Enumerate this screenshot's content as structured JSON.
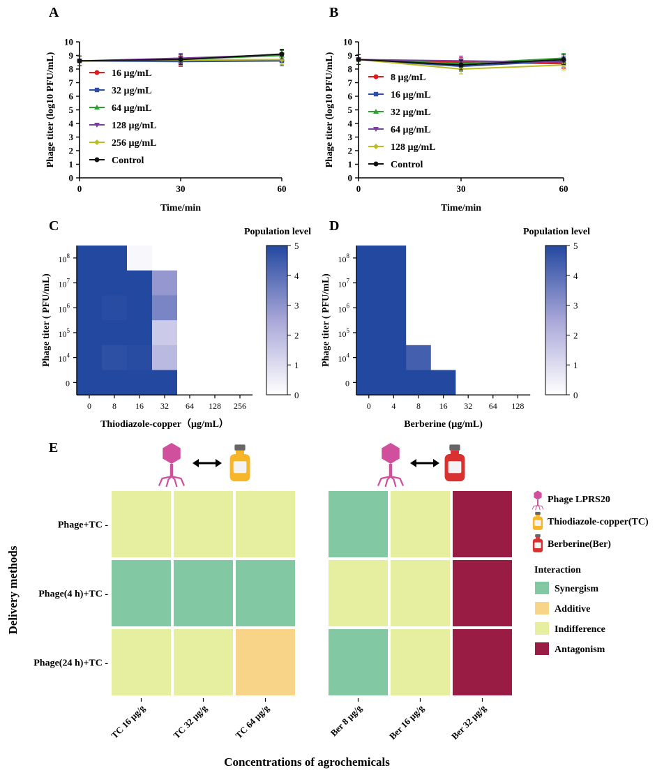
{
  "colors": {
    "series": [
      "#e31a1c",
      "#2c4fa3",
      "#2ca02c",
      "#7b3f9e",
      "#bcbd22",
      "#111111"
    ],
    "heat_high": "#2348a0",
    "heat_low": "#ffffff",
    "synergism": "#82c9a3",
    "additive": "#f7d488",
    "indifference": "#e6ee9f",
    "antagonism": "#991c44",
    "phage": "#d0509e",
    "tc_bottle": "#f7b52a",
    "ber_bottle": "#d93030"
  },
  "chart_data": [
    {
      "panel": "A",
      "type": "line",
      "xlabel": "Time/min",
      "ylabel": "Phage titer (log10 PFU/mL)",
      "x": [
        0,
        30,
        60
      ],
      "xlim": [
        0,
        60
      ],
      "ylim": [
        0,
        10
      ],
      "yticks": [
        0,
        1,
        2,
        3,
        4,
        5,
        6,
        7,
        8,
        9,
        10
      ],
      "xticks": [
        0,
        30,
        60
      ],
      "series": [
        {
          "name": "16 µg/mL",
          "marker": "circle",
          "values": [
            8.6,
            8.6,
            8.6
          ]
        },
        {
          "name": "32 µg/mL",
          "marker": "square",
          "values": [
            8.6,
            8.55,
            8.6
          ]
        },
        {
          "name": "64 µg/mL",
          "marker": "triangle",
          "values": [
            8.6,
            8.7,
            9.0
          ]
        },
        {
          "name": "128 µg/mL",
          "marker": "tri-down",
          "values": [
            8.6,
            8.8,
            9.05
          ]
        },
        {
          "name": "256 µg/mL",
          "marker": "diamond",
          "values": [
            8.6,
            8.65,
            8.7
          ]
        },
        {
          "name": "Control",
          "marker": "circle",
          "values": [
            8.6,
            8.7,
            9.1
          ]
        }
      ]
    },
    {
      "panel": "B",
      "type": "line",
      "xlabel": "Time/min",
      "ylabel": "Phage titer (log10 PFU/mL)",
      "x": [
        0,
        30,
        60
      ],
      "xlim": [
        0,
        60
      ],
      "ylim": [
        0,
        10
      ],
      "yticks": [
        0,
        1,
        2,
        3,
        4,
        5,
        6,
        7,
        8,
        9,
        10
      ],
      "xticks": [
        0,
        30,
        60
      ],
      "series": [
        {
          "name": "8 µg/mL",
          "marker": "circle",
          "values": [
            8.7,
            8.5,
            8.4
          ]
        },
        {
          "name": "16 µg/mL",
          "marker": "square",
          "values": [
            8.7,
            8.2,
            8.6
          ]
        },
        {
          "name": "32 µg/mL",
          "marker": "triangle",
          "values": [
            8.7,
            8.4,
            8.8
          ]
        },
        {
          "name": "64 µg/mL",
          "marker": "tri-down",
          "values": [
            8.7,
            8.6,
            8.5
          ]
        },
        {
          "name": "128 µg/mL",
          "marker": "diamond",
          "values": [
            8.7,
            8.0,
            8.3
          ]
        },
        {
          "name": "Control",
          "marker": "circle",
          "values": [
            8.7,
            8.3,
            8.7
          ]
        }
      ]
    },
    {
      "panel": "C",
      "type": "heatmap",
      "title": "Population level",
      "xlabel": "Thiodiazole-copper（µg/mL）",
      "ylabel": "Phage titer ( PFU/mL)",
      "x_categories": [
        "0",
        "8",
        "16",
        "32",
        "64",
        "128",
        "256"
      ],
      "y_categories": [
        "10^8",
        "10^7",
        "10^6",
        "10^5",
        "10^4",
        "0"
      ],
      "values": [
        [
          5,
          5,
          0.2,
          0,
          0,
          0,
          0
        ],
        [
          5,
          5,
          5,
          2.9,
          0,
          0,
          0
        ],
        [
          5,
          4.9,
          5,
          3.4,
          0,
          0,
          0
        ],
        [
          5,
          5,
          5,
          1.5,
          0,
          0,
          0
        ],
        [
          5,
          4.8,
          4.9,
          2.0,
          0,
          0,
          0
        ],
        [
          5,
          5,
          5,
          5,
          0,
          0,
          0
        ]
      ],
      "colorbar": {
        "min": 0,
        "max": 5,
        "ticks": [
          0,
          1,
          2,
          3,
          4,
          5
        ]
      }
    },
    {
      "panel": "D",
      "type": "heatmap",
      "title": "Population level",
      "xlabel": "Berberine (µg/mL)",
      "ylabel": "Phage titer ( PFU/mL)",
      "x_categories": [
        "0",
        "4",
        "8",
        "16",
        "32",
        "64",
        "128"
      ],
      "y_categories": [
        "10^8",
        "10^7",
        "10^6",
        "10^5",
        "10^4",
        "0"
      ],
      "values": [
        [
          5,
          5,
          0,
          0,
          0,
          0,
          0
        ],
        [
          5,
          5,
          0,
          0,
          0,
          0,
          0
        ],
        [
          5,
          5,
          0,
          0,
          0,
          0,
          0
        ],
        [
          5,
          5,
          0,
          0,
          0,
          0,
          0
        ],
        [
          5,
          5,
          4.4,
          0,
          0,
          0,
          0
        ],
        [
          5,
          5,
          5,
          5,
          0,
          0,
          0
        ]
      ],
      "colorbar": {
        "min": 0,
        "max": 5,
        "ticks": [
          0,
          1,
          2,
          3,
          4,
          5
        ]
      }
    },
    {
      "panel": "E",
      "type": "heatmap",
      "ylabel": "Delivery methods",
      "xlabel": "Concentrations of agrochemicals",
      "rows": [
        "Phage+TC -",
        "Phage(4 h)+TC -",
        "Phage(24 h)+TC -"
      ],
      "tc_columns": [
        "TC 16 µg/g",
        "TC 32 µg/g",
        "TC 64 µg/g"
      ],
      "ber_columns": [
        "Ber 8 µg/g",
        "Ber 16 µg/g",
        "Ber 32 µg/g"
      ],
      "tc_values": [
        [
          "Indifference",
          "Indifference",
          "Indifference"
        ],
        [
          "Synergism",
          "Synergism",
          "Synergism"
        ],
        [
          "Indifference",
          "Indifference",
          "Additive"
        ]
      ],
      "ber_values": [
        [
          "Synergism",
          "Indifference",
          "Antagonism"
        ],
        [
          "Indifference",
          "Indifference",
          "Antagonism"
        ],
        [
          "Synergism",
          "Indifference",
          "Antagonism"
        ]
      ],
      "legend_items": [
        {
          "label": "Phage LPRS20",
          "icon": "phage-icon"
        },
        {
          "label": "Thiodiazole-copper(TC)",
          "icon": "tc-bottle-icon"
        },
        {
          "label": "Berberine(Ber)",
          "icon": "ber-bottle-icon"
        }
      ],
      "interaction_title": "Interaction",
      "interaction_items": [
        "Synergism",
        "Additive",
        "Indifference",
        "Antagonism"
      ]
    }
  ],
  "panel_letters": [
    "A",
    "B",
    "C",
    "D",
    "E"
  ]
}
